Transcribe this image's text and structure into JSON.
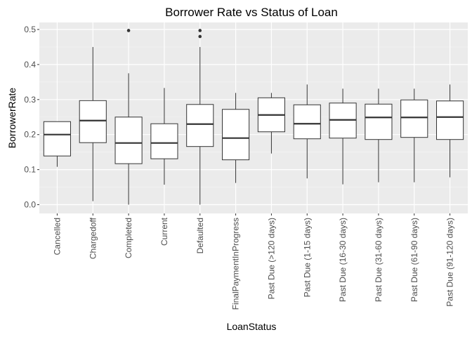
{
  "chart_data": {
    "type": "boxplot",
    "title": "Borrower Rate vs Status of Loan",
    "xlabel": "LoanStatus",
    "ylabel": "BorrowerRate",
    "ylim": [
      -0.025,
      0.52
    ],
    "yticks": [
      0.0,
      0.1,
      0.2,
      0.3,
      0.4,
      0.5
    ],
    "ytick_labels": [
      "0.0",
      "0.1",
      "0.2",
      "0.3",
      "0.4",
      "0.5"
    ],
    "grid": true,
    "categories": [
      "Cancelled",
      "Chargedoff",
      "Completed",
      "Current",
      "Defaulted",
      "FinalPaymentInProgress",
      "Past Due (>120 days)",
      "Past Due (1-15 days)",
      "Past Due (16-30 days)",
      "Past Due (31-60 days)",
      "Past Due (61-90 days)",
      "Past Due (91-120 days)"
    ],
    "boxes": [
      {
        "whisker_low": 0.108,
        "q1": 0.139,
        "median": 0.2,
        "q3": 0.237,
        "whisker_high": 0.237,
        "outliers": []
      },
      {
        "whisker_low": 0.01,
        "q1": 0.177,
        "median": 0.24,
        "q3": 0.297,
        "whisker_high": 0.45,
        "outliers": []
      },
      {
        "whisker_low": 0.0,
        "q1": 0.117,
        "median": 0.176,
        "q3": 0.25,
        "whisker_high": 0.375,
        "outliers": [
          0.497
        ]
      },
      {
        "whisker_low": 0.057,
        "q1": 0.131,
        "median": 0.176,
        "q3": 0.231,
        "whisker_high": 0.333,
        "outliers": []
      },
      {
        "whisker_low": 0.0,
        "q1": 0.166,
        "median": 0.23,
        "q3": 0.286,
        "whisker_high": 0.45,
        "outliers": [
          0.48,
          0.497
        ]
      },
      {
        "whisker_low": 0.062,
        "q1": 0.128,
        "median": 0.19,
        "q3": 0.272,
        "whisker_high": 0.319,
        "outliers": []
      },
      {
        "whisker_low": 0.146,
        "q1": 0.208,
        "median": 0.256,
        "q3": 0.305,
        "whisker_high": 0.319,
        "outliers": []
      },
      {
        "whisker_low": 0.075,
        "q1": 0.188,
        "median": 0.231,
        "q3": 0.285,
        "whisker_high": 0.343,
        "outliers": []
      },
      {
        "whisker_low": 0.058,
        "q1": 0.19,
        "median": 0.242,
        "q3": 0.29,
        "whisker_high": 0.331,
        "outliers": []
      },
      {
        "whisker_low": 0.064,
        "q1": 0.186,
        "median": 0.249,
        "q3": 0.287,
        "whisker_high": 0.331,
        "outliers": []
      },
      {
        "whisker_low": 0.064,
        "q1": 0.192,
        "median": 0.249,
        "q3": 0.299,
        "whisker_high": 0.331,
        "outliers": []
      },
      {
        "whisker_low": 0.078,
        "q1": 0.186,
        "median": 0.25,
        "q3": 0.296,
        "whisker_high": 0.343,
        "outliers": []
      }
    ],
    "colors": {
      "panel_background": "#ebebeb",
      "grid_major": "#ffffff",
      "grid_minor": "#f5f5f5",
      "box_fill": "#ffffff",
      "box_line": "#333333",
      "tick_text": "#4d4d4d",
      "title_text": "#000000"
    }
  }
}
